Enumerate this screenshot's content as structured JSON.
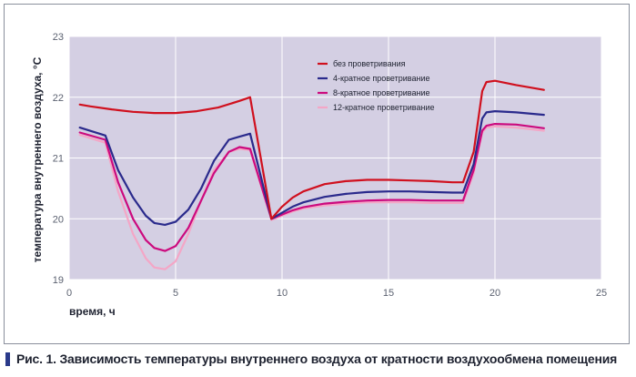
{
  "caption": "Рис. 1. Зависимость температуры внутреннего воздуха от кратности воздухообмена помещения",
  "chart_data": {
    "type": "line",
    "title": "",
    "xlabel": "время, ч",
    "ylabel": "температура внутреннего воздуха, °С",
    "xlim": [
      0,
      25
    ],
    "ylim": [
      19,
      23
    ],
    "xticks": [
      "0",
      "5",
      "10",
      "15",
      "20",
      "25"
    ],
    "yticks": [
      "19",
      "20",
      "21",
      "22",
      "23"
    ],
    "grid": true,
    "legend_position": "top-right",
    "plot_background": "#d4cfe3",
    "series": [
      {
        "name": "без проветривания",
        "color": "#d0101e",
        "x": [
          0.5,
          1,
          2,
          3,
          4,
          5,
          6,
          7,
          8,
          8.5,
          9.5,
          10,
          10.5,
          11,
          12,
          13,
          14,
          15,
          16,
          17,
          18,
          18.5,
          19,
          19.4,
          19.6,
          20,
          21,
          22.3
        ],
        "y": [
          21.88,
          21.85,
          21.8,
          21.76,
          21.74,
          21.74,
          21.77,
          21.83,
          21.94,
          22.0,
          20.0,
          20.2,
          20.35,
          20.45,
          20.57,
          20.62,
          20.64,
          20.64,
          20.63,
          20.62,
          20.6,
          20.6,
          21.1,
          22.1,
          22.25,
          22.27,
          22.2,
          22.12
        ]
      },
      {
        "name": "4-кратное проветривание",
        "color": "#2a2a8c",
        "x": [
          0.5,
          1.7,
          2.3,
          3,
          3.6,
          4,
          4.5,
          5,
          5.6,
          6.2,
          6.8,
          7.5,
          8,
          8.5,
          9.5,
          10,
          10.5,
          11,
          12,
          13,
          14,
          15,
          16,
          17,
          18,
          18.5,
          19,
          19.4,
          19.6,
          20,
          21,
          22.3
        ],
        "y": [
          21.5,
          21.37,
          20.8,
          20.35,
          20.05,
          19.93,
          19.9,
          19.95,
          20.15,
          20.5,
          20.95,
          21.3,
          21.35,
          21.4,
          20.0,
          20.1,
          20.2,
          20.27,
          20.36,
          20.41,
          20.44,
          20.45,
          20.45,
          20.44,
          20.43,
          20.43,
          20.9,
          21.65,
          21.75,
          21.77,
          21.75,
          21.71
        ]
      },
      {
        "name": "8-кратное проветривание",
        "color": "#cc0a7e",
        "x": [
          0.5,
          1.7,
          2.3,
          3,
          3.6,
          4,
          4.5,
          5,
          5.6,
          6.2,
          6.8,
          7.5,
          8,
          8.5,
          9.5,
          10,
          10.5,
          11,
          12,
          13,
          14,
          15,
          16,
          17,
          18,
          18.5,
          19,
          19.4,
          19.6,
          20,
          21,
          22.3
        ],
        "y": [
          21.42,
          21.3,
          20.6,
          20.0,
          19.65,
          19.52,
          19.47,
          19.55,
          19.85,
          20.3,
          20.75,
          21.1,
          21.18,
          21.15,
          20.0,
          20.07,
          20.14,
          20.19,
          20.25,
          20.28,
          20.3,
          20.31,
          20.31,
          20.3,
          20.3,
          20.3,
          20.8,
          21.45,
          21.53,
          21.56,
          21.55,
          21.49
        ]
      },
      {
        "name": "12-кратное проветривание",
        "color": "#f4a6c6",
        "x": [
          0.5,
          1.7,
          2.3,
          3,
          3.6,
          4,
          4.5,
          5,
          5.6,
          6.2,
          6.8,
          7.5,
          8,
          8.5,
          9.5,
          10,
          10.5,
          11,
          12,
          13,
          14,
          15,
          16,
          17,
          18,
          18.5,
          19,
          19.4,
          19.6,
          20,
          21,
          22.3
        ],
        "y": [
          21.38,
          21.25,
          20.45,
          19.75,
          19.35,
          19.2,
          19.17,
          19.3,
          19.75,
          20.3,
          20.8,
          21.1,
          21.15,
          21.13,
          19.98,
          20.05,
          20.12,
          20.17,
          20.22,
          20.25,
          20.27,
          20.27,
          20.27,
          20.26,
          20.26,
          20.26,
          20.75,
          21.42,
          21.5,
          21.52,
          21.5,
          21.45
        ]
      }
    ]
  }
}
